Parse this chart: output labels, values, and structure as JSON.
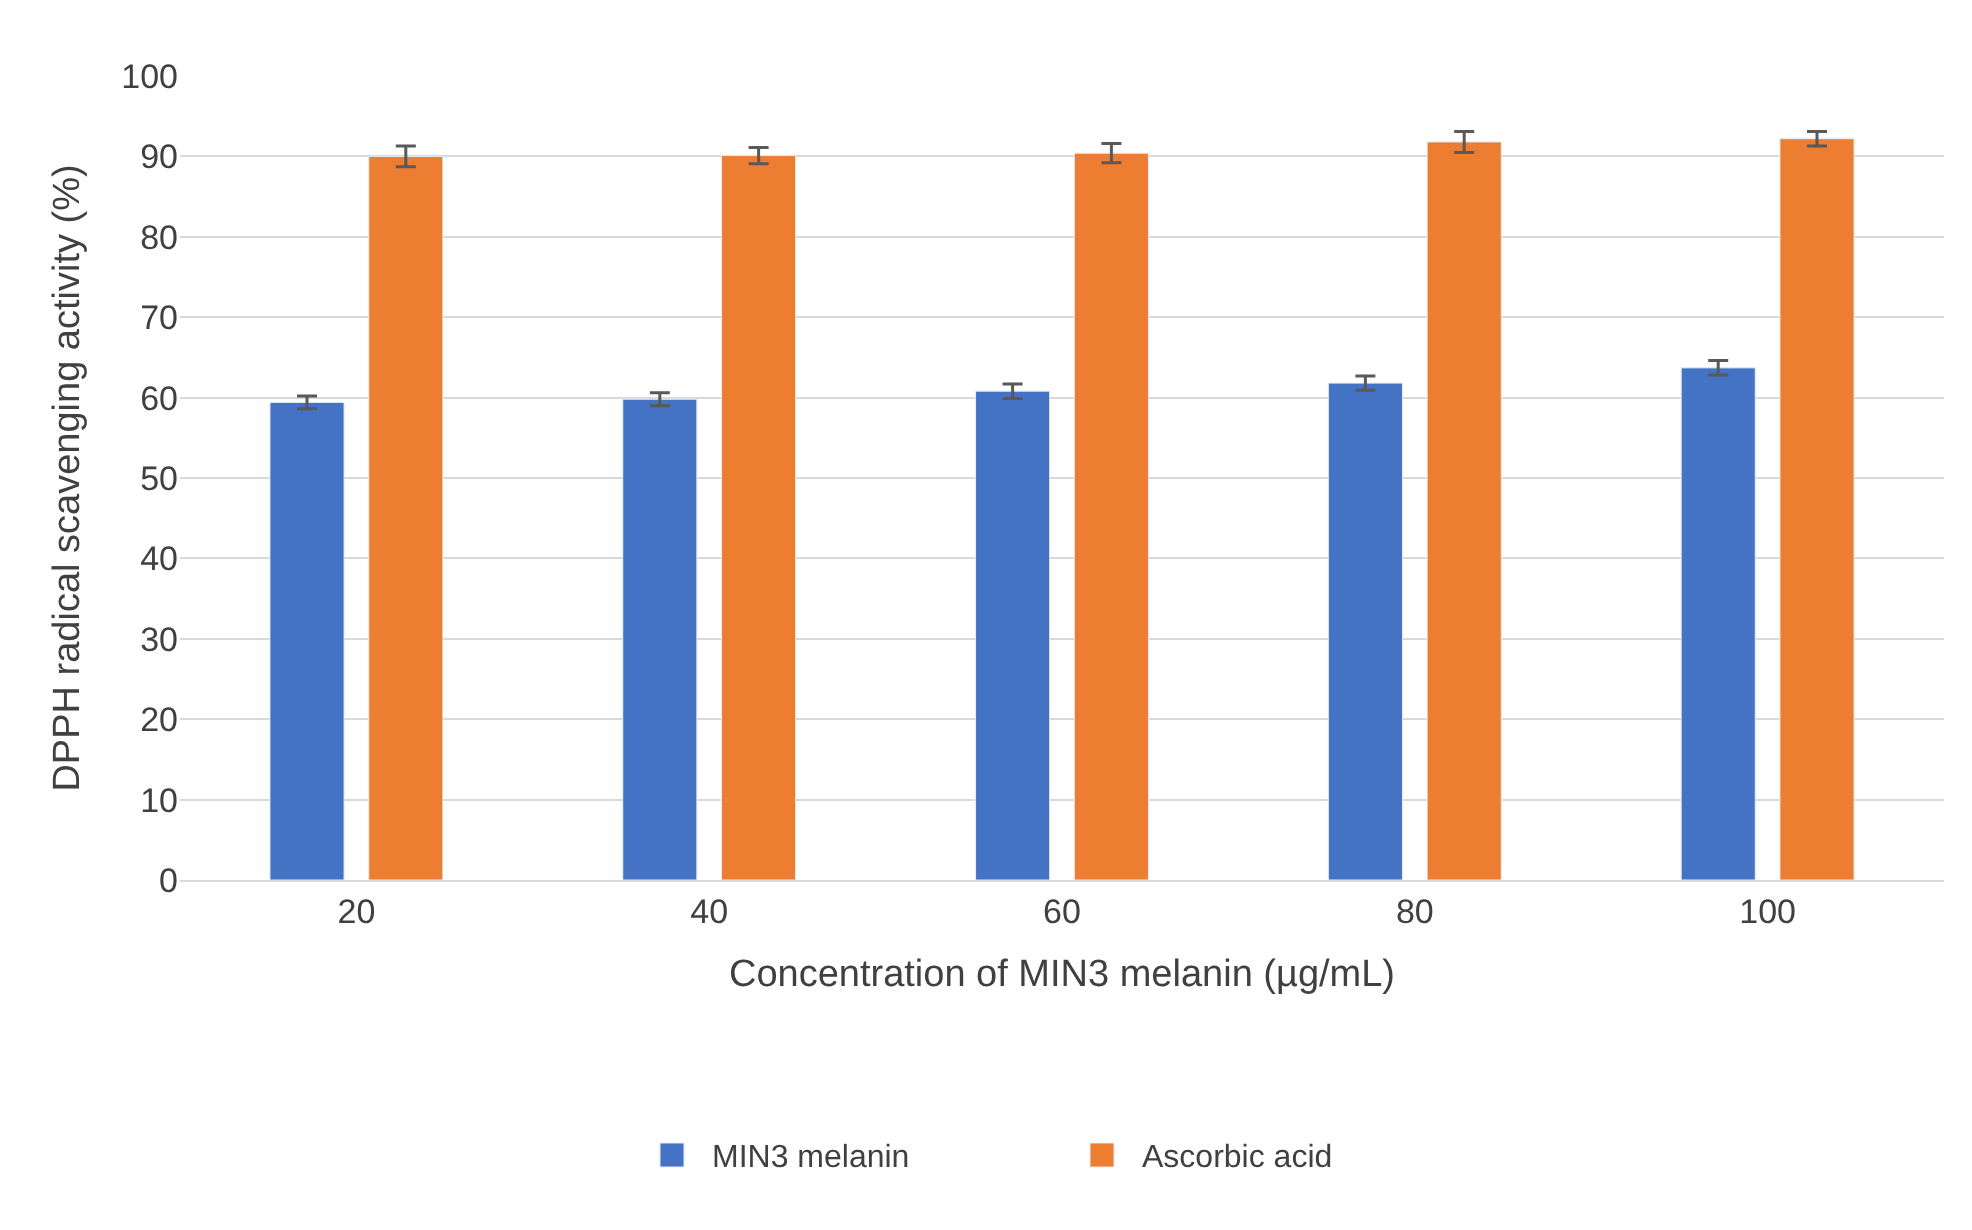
{
  "chart_data": {
    "type": "bar",
    "xlabel": "Concentration of MIN3 melanin (µg/mL)",
    "ylabel": "DPPH radical scavenging activity (%)",
    "categories": [
      "20",
      "40",
      "60",
      "80",
      "100"
    ],
    "series": [
      {
        "name": "MIN3 melanin",
        "color": "#4472c4",
        "values": [
          59.4,
          59.8,
          60.8,
          61.8,
          63.7
        ],
        "errors": [
          0.8,
          0.8,
          0.9,
          0.9,
          0.9
        ]
      },
      {
        "name": "Ascorbic acid",
        "color": "#ed7d31",
        "values": [
          90.0,
          90.1,
          90.4,
          91.8,
          92.2
        ],
        "errors": [
          1.3,
          1.0,
          1.2,
          1.3,
          0.9
        ]
      }
    ],
    "ylim": [
      0,
      100
    ],
    "yticks": [
      0,
      10,
      20,
      30,
      40,
      50,
      60,
      70,
      80,
      90,
      100
    ],
    "grid": "y",
    "legend": "bottom"
  }
}
